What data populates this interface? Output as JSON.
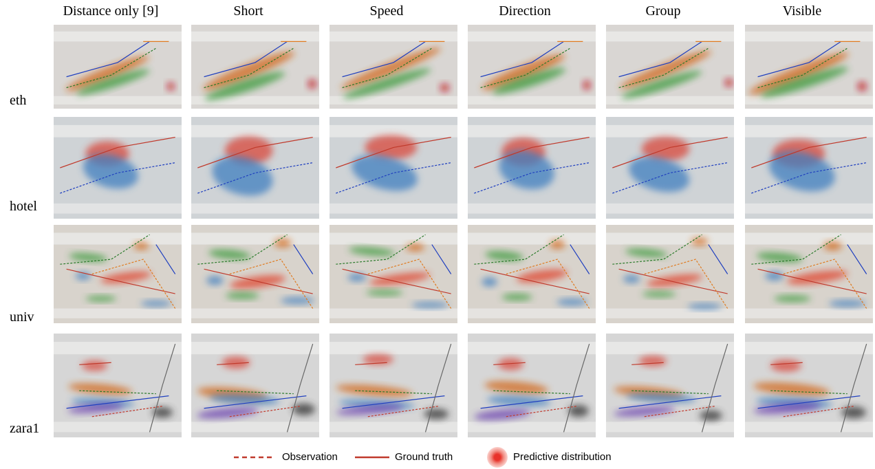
{
  "columns": [
    "Distance only [9]",
    "Short",
    "Speed",
    "Direction",
    "Group",
    "Visible"
  ],
  "rows": [
    "eth",
    "hotel",
    "univ",
    "zara1"
  ],
  "legend": [
    "Observation",
    "Ground truth",
    "Predictive distribution"
  ]
}
